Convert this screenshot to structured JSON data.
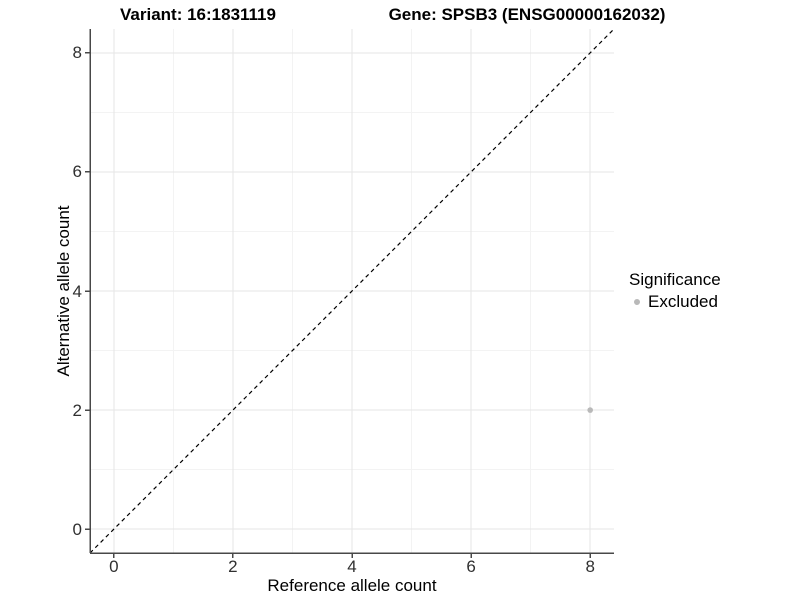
{
  "titles": {
    "variant": "Variant: 16:1831119",
    "gene": "Gene: SPSB3 (ENSG00000162032)"
  },
  "chart_data": {
    "type": "scatter",
    "title_left": "Variant: 16:1831119",
    "title_right": "Gene: SPSB3 (ENSG00000162032)",
    "xlabel": "Reference allele count",
    "ylabel": "Alternative allele count",
    "xlim": [
      -0.4,
      8.4
    ],
    "ylim": [
      -0.4,
      8.4
    ],
    "x_ticks": [
      0,
      2,
      4,
      6,
      8
    ],
    "y_ticks": [
      0,
      2,
      4,
      6,
      8
    ],
    "x_minor_ticks": [
      1,
      3,
      5,
      7
    ],
    "y_minor_ticks": [
      1,
      3,
      5,
      7
    ],
    "grid": "major+minor",
    "reference_line": {
      "kind": "identity y=x",
      "style": "dashed",
      "color": "#000000"
    },
    "series": [
      {
        "name": "Excluded",
        "color": "#b9b9b9",
        "points": [
          {
            "x": 8,
            "y": 2
          }
        ]
      }
    ],
    "legend": {
      "title": "Significance",
      "position": "right",
      "entries": [
        {
          "label": "Excluded",
          "color": "#b9b9b9"
        }
      ]
    }
  },
  "colors": {
    "background": "#ffffff",
    "major_grid": "#e6e6e6",
    "minor_grid": "#f3f3f3",
    "axis_line": "#484848",
    "tick_text": "#303030",
    "point": "#b9b9b9",
    "dashed_line": "#000000"
  }
}
